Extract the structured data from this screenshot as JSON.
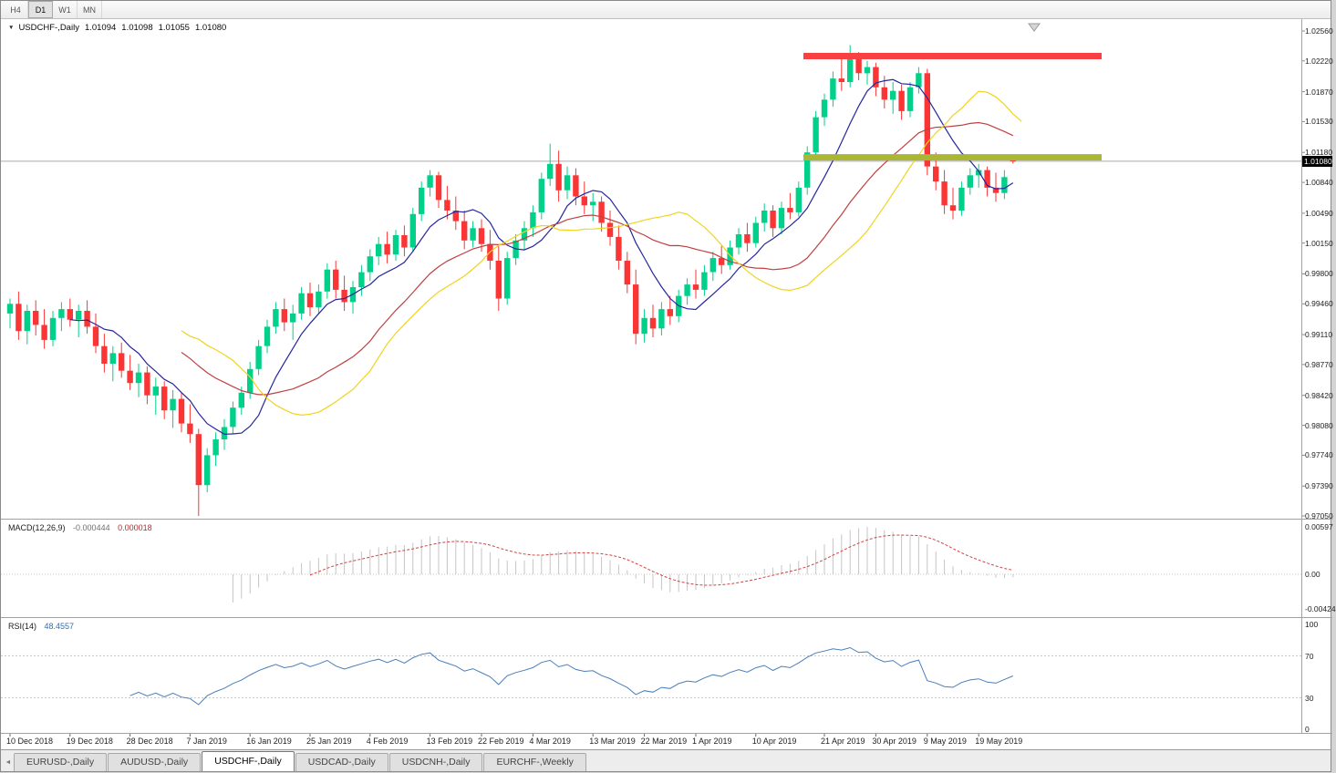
{
  "toolbar": {
    "periods": [
      "H4",
      "D1",
      "W1",
      "MN"
    ],
    "active_period": "D1"
  },
  "chart": {
    "collapse_icon": "▼",
    "symbol": "USDCHF-,Daily",
    "ohlc": {
      "open": "1.01094",
      "high": "1.01098",
      "low": "1.01055",
      "close": "1.01080"
    },
    "current_price_tag": "1.01080"
  },
  "macd_panel": {
    "label": "MACD(12,26,9)",
    "value_main": "-0.000444",
    "value_signal": "0.000018",
    "scale_labels": [
      "0.00597",
      "0.00",
      "-0.00424"
    ]
  },
  "rsi_panel": {
    "label": "RSI(14)",
    "value": "48.4557",
    "scale_labels": [
      "100",
      "70",
      "30",
      "0"
    ]
  },
  "tabs": {
    "scroll_left_icon": "◄",
    "items": [
      {
        "label": "EURUSD-,Daily",
        "active": false
      },
      {
        "label": "AUDUSD-,Daily",
        "active": false
      },
      {
        "label": "USDCHF-,Daily",
        "active": true
      },
      {
        "label": "USDCAD-,Daily",
        "active": false
      },
      {
        "label": "USDCNH-,Daily",
        "active": false
      },
      {
        "label": "EURCHF-,Weekly",
        "active": false
      }
    ]
  },
  "chart_data": {
    "type": "candlestick",
    "symbol": "USDCHF",
    "timeframe": "Daily",
    "axis_top_price": 1.0256,
    "axis_bottom_price": 0.9705,
    "current_price": 1.0108,
    "candle_up_color": "#00D08A",
    "candle_down_color": "#FA3535",
    "price_axis_labels": [
      "1.02560",
      "1.02220",
      "1.01870",
      "1.01530",
      "1.01180",
      "1.00840",
      "1.00490",
      "1.00150",
      "0.99800",
      "0.99460",
      "0.99110",
      "0.98770",
      "0.98420",
      "0.98080",
      "0.97740",
      "0.97390",
      "0.97050"
    ],
    "date_labels": [
      {
        "label": "10 Dec 2018",
        "index": 0
      },
      {
        "label": "19 Dec 2018",
        "index": 7
      },
      {
        "label": "28 Dec 2018",
        "index": 14
      },
      {
        "label": "7 Jan 2019",
        "index": 21
      },
      {
        "label": "16 Jan 2019",
        "index": 28
      },
      {
        "label": "25 Jan 2019",
        "index": 35
      },
      {
        "label": "4 Feb 2019",
        "index": 42
      },
      {
        "label": "13 Feb 2019",
        "index": 49
      },
      {
        "label": "22 Feb 2019",
        "index": 55
      },
      {
        "label": "4 Mar 2019",
        "index": 61
      },
      {
        "label": "13 Mar 2019",
        "index": 68
      },
      {
        "label": "22 Mar 2019",
        "index": 74
      },
      {
        "label": "1 Apr 2019",
        "index": 80
      },
      {
        "label": "10 Apr 2019",
        "index": 87
      },
      {
        "label": "21 Apr 2019",
        "index": 95
      },
      {
        "label": "30 Apr 2019",
        "index": 101
      },
      {
        "label": "9 May 2019",
        "index": 107
      },
      {
        "label": "19 May 2019",
        "index": 113
      }
    ],
    "moving_averages": [
      {
        "name": "fast",
        "period": 8,
        "shift": 0,
        "color": "#26269E"
      },
      {
        "name": "medium",
        "period": 21,
        "shift": 0,
        "color": "#C04040"
      },
      {
        "name": "slow",
        "period": 14,
        "shift": 7,
        "color": "#EFD41F"
      }
    ],
    "horizontal_lines": [
      {
        "name": "resistance-line",
        "price": 1.02275,
        "color": "#F94144",
        "thickness": 7
      },
      {
        "name": "support-line",
        "price": 1.01125,
        "color": "#A9B636",
        "thickness": 7
      }
    ],
    "macd": {
      "fast": 12,
      "slow": 26,
      "signal": 9,
      "histogram_color": "#C4C4C4",
      "signal_color": "#CC4444"
    },
    "rsi": {
      "period": 14,
      "line_color": "#4A7EBB",
      "levels": [
        30,
        70
      ]
    },
    "ohlc": [
      [
        0.9935,
        0.9952,
        0.9918,
        0.9946
      ],
      [
        0.9946,
        0.996,
        0.9905,
        0.9915
      ],
      [
        0.9915,
        0.9945,
        0.99,
        0.9938
      ],
      [
        0.9938,
        0.995,
        0.991,
        0.9922
      ],
      [
        0.9922,
        0.994,
        0.9895,
        0.9905
      ],
      [
        0.9905,
        0.9938,
        0.9898,
        0.993
      ],
      [
        0.993,
        0.9948,
        0.9915,
        0.994
      ],
      [
        0.994,
        0.9952,
        0.992,
        0.9928
      ],
      [
        0.9928,
        0.9945,
        0.9908,
        0.9938
      ],
      [
        0.9938,
        0.995,
        0.9912,
        0.992
      ],
      [
        0.992,
        0.9935,
        0.989,
        0.9898
      ],
      [
        0.9898,
        0.9912,
        0.9868,
        0.9878
      ],
      [
        0.9878,
        0.9898,
        0.9858,
        0.989
      ],
      [
        0.989,
        0.9902,
        0.9862,
        0.987
      ],
      [
        0.987,
        0.9888,
        0.9848,
        0.9856
      ],
      [
        0.9856,
        0.9878,
        0.984,
        0.9868
      ],
      [
        0.9868,
        0.9875,
        0.9832,
        0.9842
      ],
      [
        0.9842,
        0.9862,
        0.982,
        0.9852
      ],
      [
        0.9852,
        0.9858,
        0.9815,
        0.9825
      ],
      [
        0.9825,
        0.9848,
        0.9805,
        0.9838
      ],
      [
        0.9838,
        0.9845,
        0.98,
        0.981
      ],
      [
        0.981,
        0.9832,
        0.9788,
        0.9798
      ],
      [
        0.9798,
        0.9804,
        0.9705,
        0.974
      ],
      [
        0.974,
        0.9782,
        0.9732,
        0.9774
      ],
      [
        0.9774,
        0.98,
        0.9762,
        0.9792
      ],
      [
        0.9792,
        0.9815,
        0.978,
        0.9806
      ],
      [
        0.9806,
        0.9835,
        0.9798,
        0.9828
      ],
      [
        0.9828,
        0.9852,
        0.982,
        0.9845
      ],
      [
        0.9845,
        0.988,
        0.9838,
        0.9872
      ],
      [
        0.9872,
        0.9905,
        0.9865,
        0.9898
      ],
      [
        0.9898,
        0.9928,
        0.989,
        0.992
      ],
      [
        0.992,
        0.9948,
        0.9912,
        0.994
      ],
      [
        0.994,
        0.9952,
        0.9915,
        0.9925
      ],
      [
        0.9925,
        0.9945,
        0.9905,
        0.9935
      ],
      [
        0.9935,
        0.9965,
        0.9928,
        0.9958
      ],
      [
        0.9958,
        0.997,
        0.9932,
        0.9942
      ],
      [
        0.9942,
        0.9968,
        0.9935,
        0.996
      ],
      [
        0.996,
        0.9992,
        0.9952,
        0.9985
      ],
      [
        0.9985,
        0.9995,
        0.9952,
        0.9962
      ],
      [
        0.9962,
        0.9978,
        0.9938,
        0.9948
      ],
      [
        0.9948,
        0.9972,
        0.9935,
        0.9965
      ],
      [
        0.9965,
        0.999,
        0.9955,
        0.9982
      ],
      [
        0.9982,
        1.0008,
        0.9972,
        1.0
      ],
      [
        1.0,
        1.0022,
        0.999,
        1.0014
      ],
      [
        1.0014,
        1.0028,
        0.9992,
        1.0002
      ],
      [
        1.0002,
        1.003,
        0.9995,
        1.0024
      ],
      [
        1.0024,
        1.0035,
        1.0,
        1.001
      ],
      [
        1.001,
        1.0055,
        1.0005,
        1.0048
      ],
      [
        1.0048,
        1.0085,
        1.004,
        1.0078
      ],
      [
        1.0078,
        1.0098,
        1.0068,
        1.0092
      ],
      [
        1.0092,
        1.0096,
        1.0055,
        1.0064
      ],
      [
        1.0064,
        1.008,
        1.0042,
        1.0052
      ],
      [
        1.0052,
        1.0068,
        1.003,
        1.004
      ],
      [
        1.004,
        1.0052,
        1.0008,
        1.0018
      ],
      [
        1.0018,
        1.004,
        1.001,
        1.0032
      ],
      [
        1.0032,
        1.0042,
        1.0005,
        1.0014
      ],
      [
        1.0014,
        1.003,
        0.9985,
        0.9995
      ],
      [
        0.9995,
        1.0012,
        0.9938,
        0.9952
      ],
      [
        0.9952,
        1.0005,
        0.9945,
        0.9998
      ],
      [
        0.9998,
        1.0025,
        0.999,
        1.0018
      ],
      [
        1.0018,
        1.004,
        1.0008,
        1.0032
      ],
      [
        1.0032,
        1.0058,
        1.0022,
        1.005
      ],
      [
        1.005,
        1.0095,
        1.0042,
        1.0088
      ],
      [
        1.0088,
        1.0128,
        1.008,
        1.0105
      ],
      [
        1.0105,
        1.012,
        1.0062,
        1.0075
      ],
      [
        1.0075,
        1.0102,
        1.0065,
        1.0092
      ],
      [
        1.0092,
        1.01,
        1.0058,
        1.0068
      ],
      [
        1.0068,
        1.0085,
        1.0048,
        1.0058
      ],
      [
        1.0058,
        1.0072,
        1.004,
        1.0062
      ],
      [
        1.0062,
        1.0068,
        1.0028,
        1.0038
      ],
      [
        1.0038,
        1.0052,
        1.0012,
        1.0022
      ],
      [
        1.0022,
        1.0035,
        0.9985,
        0.9995
      ],
      [
        0.9995,
        1.0005,
        0.9958,
        0.9968
      ],
      [
        0.9968,
        0.9985,
        0.99,
        0.9912
      ],
      [
        0.9912,
        0.994,
        0.9902,
        0.993
      ],
      [
        0.993,
        0.9945,
        0.9908,
        0.9918
      ],
      [
        0.9918,
        0.9948,
        0.991,
        0.994
      ],
      [
        0.994,
        0.9955,
        0.9922,
        0.9932
      ],
      [
        0.9932,
        0.9962,
        0.9925,
        0.9955
      ],
      [
        0.9955,
        0.9975,
        0.9945,
        0.9968
      ],
      [
        0.9968,
        0.9985,
        0.9952,
        0.9962
      ],
      [
        0.9962,
        0.999,
        0.9955,
        0.9982
      ],
      [
        0.9982,
        1.0005,
        0.9972,
        0.9998
      ],
      [
        0.9998,
        1.0012,
        0.998,
        0.999
      ],
      [
        0.999,
        1.0018,
        0.9985,
        1.001
      ],
      [
        1.001,
        1.0032,
        1.0002,
        1.0025
      ],
      [
        1.0025,
        1.0038,
        1.0005,
        1.0015
      ],
      [
        1.0015,
        1.0045,
        1.001,
        1.0038
      ],
      [
        1.0038,
        1.006,
        1.0028,
        1.0052
      ],
      [
        1.0052,
        1.0058,
        1.0022,
        1.0032
      ],
      [
        1.0032,
        1.0062,
        1.0025,
        1.0055
      ],
      [
        1.0055,
        1.0072,
        1.0042,
        1.005
      ],
      [
        1.005,
        1.0085,
        1.0045,
        1.0078
      ],
      [
        1.0078,
        1.0125,
        1.007,
        1.0118
      ],
      [
        1.0118,
        1.0165,
        1.011,
        1.0158
      ],
      [
        1.0158,
        1.0185,
        1.0148,
        1.0178
      ],
      [
        1.0178,
        1.021,
        1.017,
        1.0202
      ],
      [
        1.0202,
        1.0228,
        1.0188,
        1.0198
      ],
      [
        1.0198,
        1.024,
        1.0192,
        1.0225
      ],
      [
        1.0225,
        1.0232,
        1.02,
        1.0208
      ],
      [
        1.0208,
        1.0222,
        1.0195,
        1.0215
      ],
      [
        1.0215,
        1.022,
        1.0182,
        1.0192
      ],
      [
        1.0192,
        1.0205,
        1.0168,
        1.0178
      ],
      [
        1.0178,
        1.0198,
        1.0162,
        1.0188
      ],
      [
        1.0188,
        1.0195,
        1.0155,
        1.0165
      ],
      [
        1.0165,
        1.0198,
        1.0158,
        1.0192
      ],
      [
        1.0192,
        1.0215,
        1.0185,
        1.0208
      ],
      [
        1.0208,
        1.0213,
        1.0092,
        1.0102
      ],
      [
        1.0102,
        1.0118,
        1.0075,
        1.0085
      ],
      [
        1.0085,
        1.0098,
        1.0048,
        1.0058
      ],
      [
        1.0058,
        1.0078,
        1.0042,
        1.0052
      ],
      [
        1.0052,
        1.0085,
        1.0046,
        1.0078
      ],
      [
        1.0078,
        1.01,
        1.007,
        1.0092
      ],
      [
        1.0092,
        1.0105,
        1.0078,
        1.0098
      ],
      [
        1.0098,
        1.0102,
        1.0068,
        1.0078
      ],
      [
        1.0078,
        1.0095,
        1.0062,
        1.0072
      ],
      [
        1.0072,
        1.0098,
        1.0065,
        1.009
      ],
      [
        1.01094,
        1.01098,
        1.01055,
        1.0108
      ]
    ]
  }
}
